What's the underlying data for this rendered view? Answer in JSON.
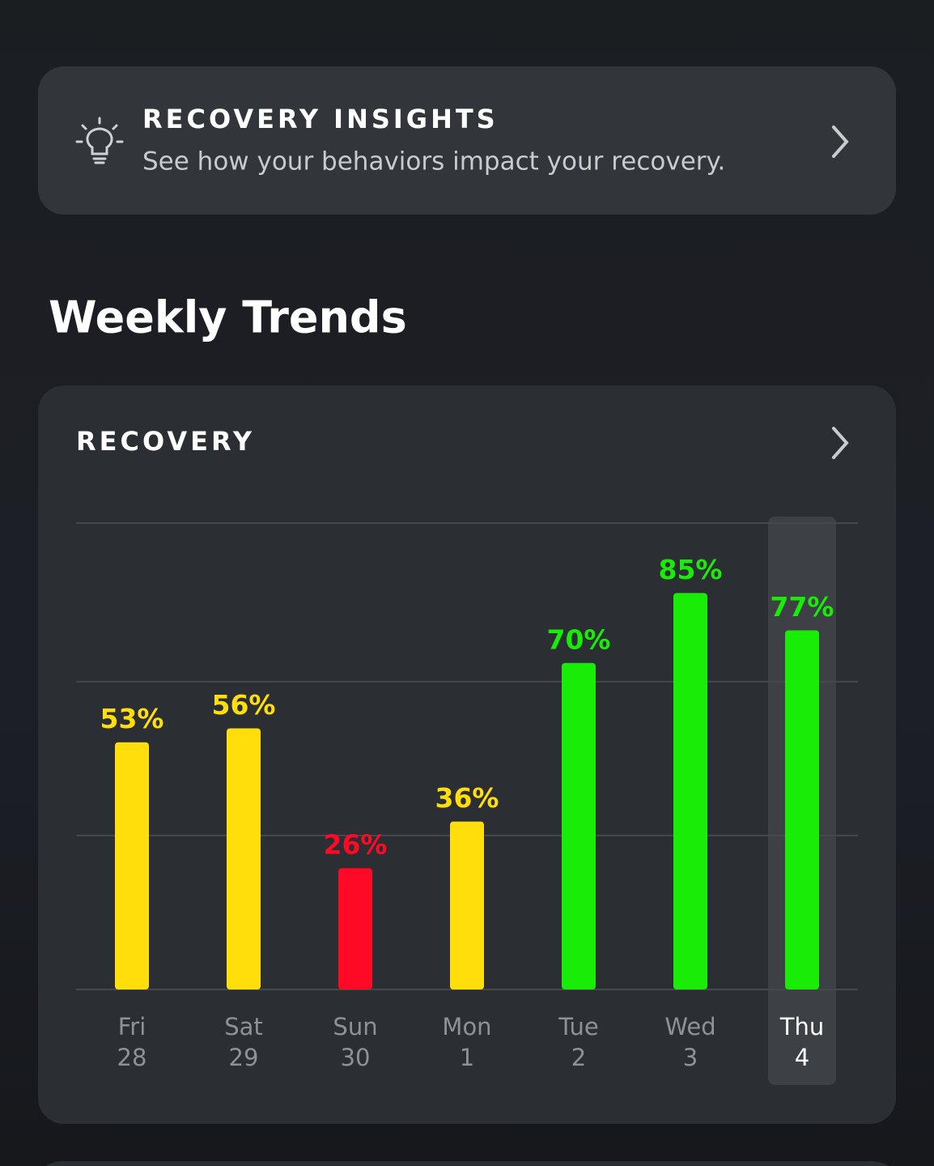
{
  "insights": {
    "title": "RECOVERY INSIGHTS",
    "subtitle": "See how your behaviors impact your recovery."
  },
  "section_title": "Weekly Trends",
  "chart_data": {
    "type": "bar",
    "title": "RECOVERY",
    "categories": [
      "Fri",
      "Sat",
      "Sun",
      "Mon",
      "Tue",
      "Wed",
      "Thu"
    ],
    "sublabels": [
      "28",
      "29",
      "30",
      "1",
      "2",
      "3",
      "4"
    ],
    "values": [
      53,
      56,
      26,
      36,
      70,
      85,
      77
    ],
    "value_labels": [
      "53%",
      "56%",
      "26%",
      "36%",
      "70%",
      "85%",
      "77%"
    ],
    "colors": [
      "#ffde0b",
      "#ffde0b",
      "#ff0a26",
      "#ffde0b",
      "#19ec06",
      "#19ec06",
      "#19ec06"
    ],
    "ylim": [
      0,
      100
    ],
    "yticks": [
      0,
      33,
      66,
      100
    ],
    "grid": true,
    "highlight_index": 6
  }
}
